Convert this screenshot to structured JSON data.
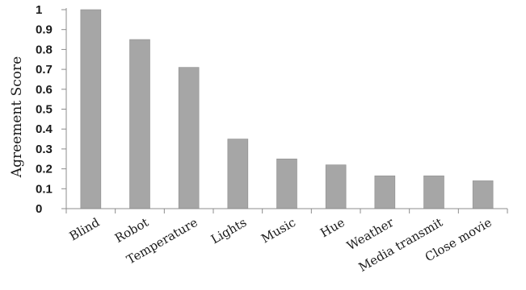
{
  "chart_data": {
    "type": "bar",
    "ylabel": "Agreement Score",
    "ylim": [
      0,
      1
    ],
    "y_ticks": [
      "0",
      "0.1",
      "0.2",
      "0.3",
      "0.4",
      "0.5",
      "0.6",
      "0.7",
      "0.8",
      "0.9",
      "1"
    ],
    "categories": [
      "Blind",
      "Robot",
      "Temperature",
      "Lights",
      "Music",
      "Hue",
      "Weather",
      "Media transmit",
      "Close movie"
    ],
    "values": [
      1.0,
      0.85,
      0.71,
      0.35,
      0.25,
      0.22,
      0.165,
      0.165,
      0.14
    ],
    "grid": false,
    "legend": "none",
    "bar_color": "#a6a6a6",
    "bar_edge_color": "#8f8f8f",
    "axis_color": "#8c8c8c"
  }
}
